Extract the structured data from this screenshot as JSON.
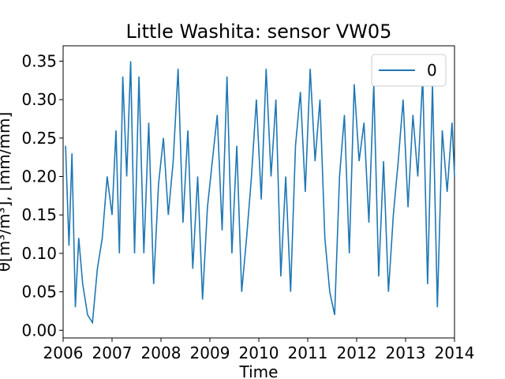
{
  "chart_data": {
    "type": "line",
    "title": "Little Washita: sensor VW05",
    "xlabel": "Time",
    "ylabel": "θ[m³/m³], [mm/mm]",
    "xlim": [
      2006,
      2014
    ],
    "ylim": [
      -0.01,
      0.37
    ],
    "x_ticks": [
      "2006",
      "2007",
      "2008",
      "2009",
      "2010",
      "2011",
      "2012",
      "2013",
      "2014"
    ],
    "y_ticks": [
      "0.00",
      "0.05",
      "0.10",
      "0.15",
      "0.20",
      "0.25",
      "0.30",
      "0.35"
    ],
    "grid": false,
    "legend_position": "top-right",
    "series": [
      {
        "name": "0",
        "color": "#1f77b4",
        "x": [
          2006.05,
          2006.12,
          2006.18,
          2006.25,
          2006.32,
          2006.4,
          2006.5,
          2006.6,
          2006.7,
          2006.8,
          2006.9,
          2007.0,
          2007.08,
          2007.15,
          2007.22,
          2007.3,
          2007.38,
          2007.46,
          2007.55,
          2007.65,
          2007.75,
          2007.85,
          2007.95,
          2008.05,
          2008.15,
          2008.25,
          2008.35,
          2008.45,
          2008.55,
          2008.65,
          2008.75,
          2008.85,
          2008.95,
          2009.05,
          2009.15,
          2009.25,
          2009.35,
          2009.45,
          2009.55,
          2009.65,
          2009.75,
          2009.85,
          2009.95,
          2010.05,
          2010.15,
          2010.25,
          2010.35,
          2010.45,
          2010.55,
          2010.65,
          2010.75,
          2010.85,
          2010.95,
          2011.05,
          2011.15,
          2011.25,
          2011.35,
          2011.45,
          2011.55,
          2011.65,
          2011.75,
          2011.85,
          2011.95,
          2012.05,
          2012.15,
          2012.25,
          2012.35,
          2012.45,
          2012.55,
          2012.65,
          2012.75,
          2012.85,
          2012.95,
          2013.05,
          2013.15,
          2013.25,
          2013.35,
          2013.45,
          2013.55,
          2013.65,
          2013.75,
          2013.85,
          2013.95,
          2014.0
        ],
        "y": [
          0.24,
          0.11,
          0.23,
          0.03,
          0.12,
          0.06,
          0.02,
          0.01,
          0.08,
          0.12,
          0.2,
          0.15,
          0.26,
          0.1,
          0.33,
          0.2,
          0.35,
          0.1,
          0.33,
          0.1,
          0.27,
          0.06,
          0.19,
          0.25,
          0.15,
          0.22,
          0.34,
          0.14,
          0.26,
          0.08,
          0.2,
          0.04,
          0.16,
          0.22,
          0.28,
          0.13,
          0.33,
          0.1,
          0.24,
          0.05,
          0.12,
          0.2,
          0.3,
          0.17,
          0.34,
          0.2,
          0.3,
          0.07,
          0.2,
          0.05,
          0.24,
          0.31,
          0.18,
          0.34,
          0.22,
          0.3,
          0.12,
          0.05,
          0.02,
          0.2,
          0.28,
          0.1,
          0.32,
          0.22,
          0.27,
          0.14,
          0.32,
          0.07,
          0.22,
          0.05,
          0.15,
          0.22,
          0.3,
          0.16,
          0.28,
          0.2,
          0.33,
          0.06,
          0.32,
          0.03,
          0.26,
          0.18,
          0.27,
          0.2
        ]
      }
    ]
  }
}
